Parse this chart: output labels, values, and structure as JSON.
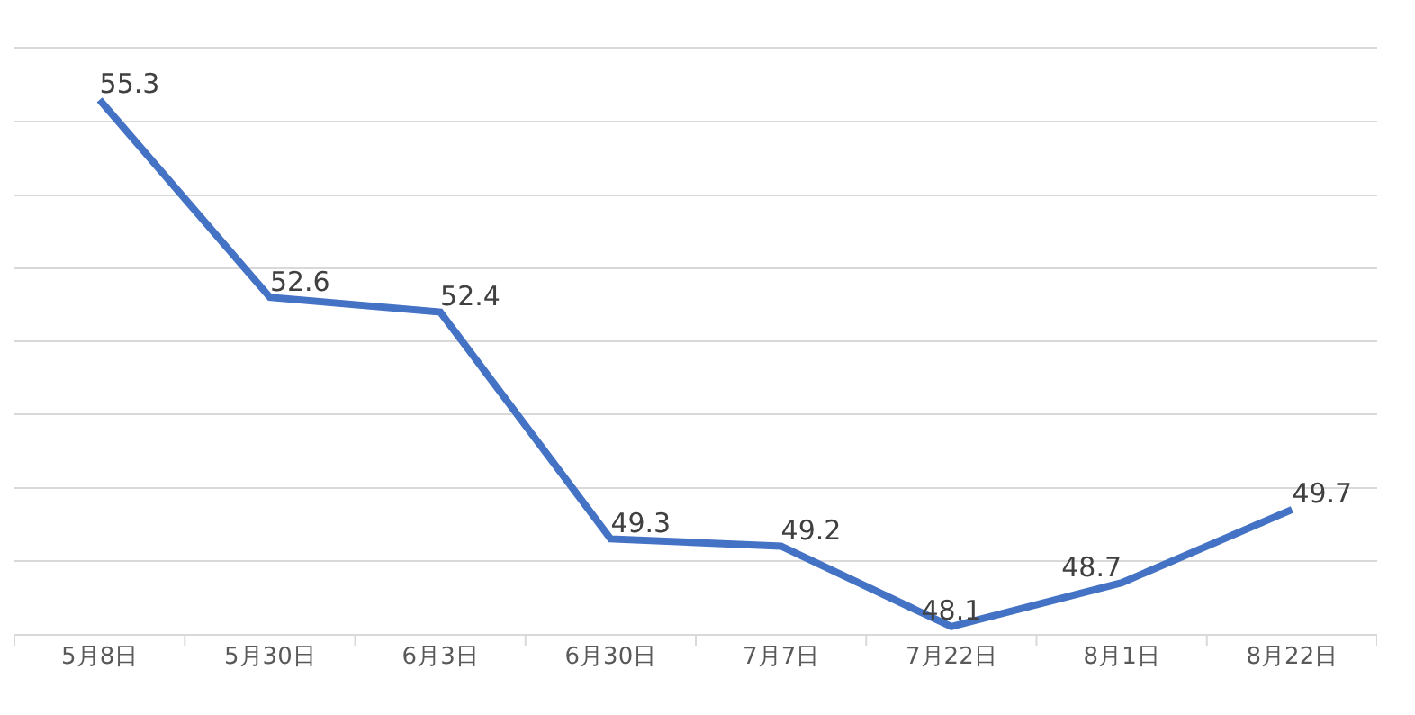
{
  "chart_data": {
    "type": "line",
    "categories": [
      "5月8日",
      "5月30日",
      "6月3日",
      "6月30日",
      "7月7日",
      "7月22日",
      "8月1日",
      "8月22日"
    ],
    "series": [
      {
        "color": "#4472c4",
        "values": [
          55.3,
          52.6,
          52.4,
          49.3,
          49.2,
          48.1,
          48.7,
          49.7
        ]
      }
    ],
    "ylim": [
      48,
      56
    ],
    "yticks": [
      {
        "value": 48,
        "label": null
      },
      {
        "value": 49,
        "label": null
      },
      {
        "value": 50,
        "label": null
      },
      {
        "value": 51,
        "label": null
      },
      {
        "value": 52,
        "label": null
      },
      {
        "value": 53,
        "label": null
      },
      {
        "value": 54,
        "label": null
      },
      {
        "value": 55,
        "label": null
      },
      {
        "value": 56,
        "label": null
      }
    ],
    "grid": "y",
    "tick_labels": "x",
    "data_labels": true,
    "marker": "none",
    "line_style": "solid"
  }
}
